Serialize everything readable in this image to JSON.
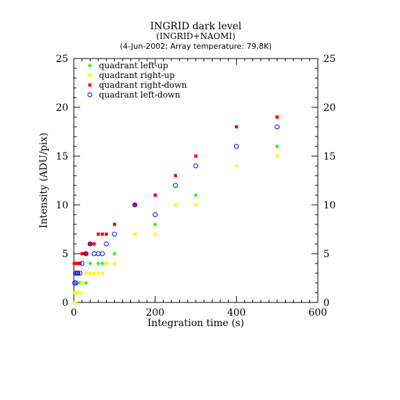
{
  "chart_data": {
    "type": "scatter",
    "title": "INGRID dark level",
    "subtitle": "(INGRID+NAOMI)",
    "subtitle2": "(4-Jun-2002; Array temperature: 79.8K)",
    "xlabel": "Integration time (s)",
    "ylabel": "Intensity (ADU/pix)",
    "xlim": [
      0,
      600
    ],
    "ylim": [
      0,
      25
    ],
    "xticks": [
      0,
      200,
      400,
      600
    ],
    "yticks": [
      0,
      5,
      10,
      15,
      20,
      25
    ],
    "grid": false,
    "legend_position": "top-left",
    "series": [
      {
        "name": "quadrant left-up",
        "marker": "asterisk",
        "color": "#00ee00",
        "points": [
          [
            2,
            1
          ],
          [
            5,
            1
          ],
          [
            8,
            1
          ],
          [
            10,
            1
          ],
          [
            15,
            2
          ],
          [
            20,
            2
          ],
          [
            30,
            2
          ],
          [
            40,
            4
          ],
          [
            60,
            4
          ],
          [
            70,
            4
          ],
          [
            80,
            4
          ],
          [
            100,
            5
          ],
          [
            150,
            10
          ],
          [
            200,
            8
          ],
          [
            300,
            11
          ],
          [
            500,
            16
          ]
        ]
      },
      {
        "name": "quadrant right-up",
        "marker": "filled-circle",
        "color": "#ffff00",
        "points": [
          [
            1,
            0
          ],
          [
            2,
            1
          ],
          [
            3,
            1
          ],
          [
            4,
            0
          ],
          [
            5,
            1
          ],
          [
            8,
            1
          ],
          [
            10,
            1
          ],
          [
            15,
            1
          ],
          [
            20,
            2
          ],
          [
            30,
            3
          ],
          [
            40,
            3
          ],
          [
            50,
            3
          ],
          [
            60,
            3
          ],
          [
            70,
            3
          ],
          [
            80,
            4
          ],
          [
            100,
            4
          ],
          [
            150,
            7
          ],
          [
            200,
            7
          ],
          [
            250,
            10
          ],
          [
            300,
            10
          ],
          [
            400,
            14
          ],
          [
            500,
            15
          ]
        ]
      },
      {
        "name": "quadrant right-down",
        "marker": "filled-square",
        "color": "#ff0000",
        "points": [
          [
            1,
            4
          ],
          [
            3,
            4
          ],
          [
            5,
            4
          ],
          [
            8,
            4
          ],
          [
            10,
            4
          ],
          [
            15,
            4
          ],
          [
            20,
            5
          ],
          [
            25,
            5
          ],
          [
            30,
            5
          ],
          [
            40,
            6
          ],
          [
            50,
            6
          ],
          [
            60,
            7
          ],
          [
            70,
            7
          ],
          [
            80,
            7
          ],
          [
            100,
            8
          ],
          [
            150,
            10
          ],
          [
            200,
            11
          ],
          [
            250,
            13
          ],
          [
            300,
            15
          ],
          [
            400,
            18
          ],
          [
            500,
            19
          ]
        ]
      },
      {
        "name": "quadrant left-down",
        "marker": "open-circle",
        "color": "#0000ff",
        "points": [
          [
            2,
            2
          ],
          [
            4,
            3
          ],
          [
            5,
            2
          ],
          [
            8,
            3
          ],
          [
            10,
            3
          ],
          [
            15,
            3
          ],
          [
            20,
            4
          ],
          [
            30,
            5
          ],
          [
            40,
            6
          ],
          [
            50,
            5
          ],
          [
            60,
            5
          ],
          [
            70,
            5
          ],
          [
            80,
            6
          ],
          [
            100,
            7
          ],
          [
            150,
            10
          ],
          [
            200,
            9
          ],
          [
            250,
            12
          ],
          [
            300,
            14
          ],
          [
            400,
            16
          ],
          [
            500,
            18
          ]
        ]
      }
    ]
  }
}
